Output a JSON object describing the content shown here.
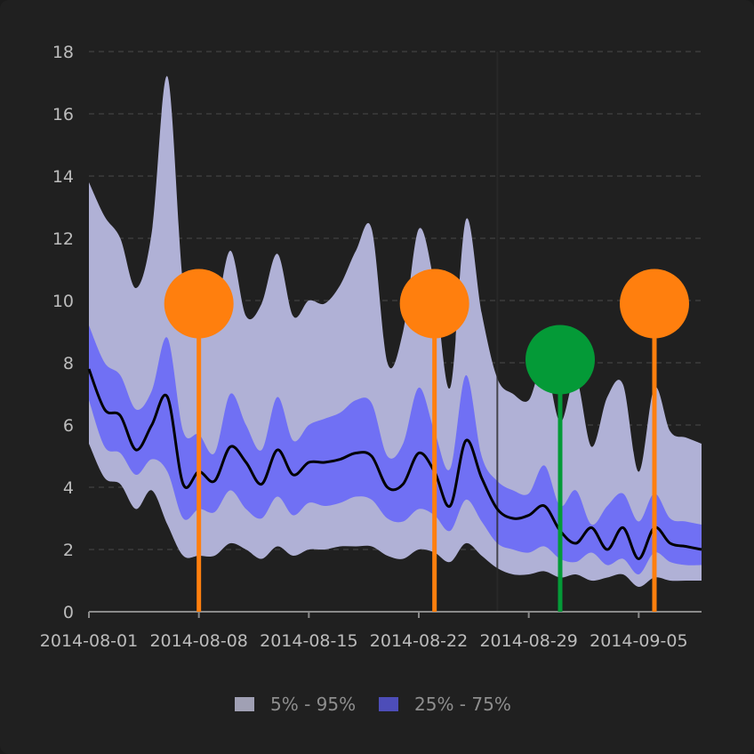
{
  "chart_data": {
    "type": "area",
    "x_start": "2014-08-01",
    "x_end": "2014-09-09",
    "ylim": [
      0,
      18
    ],
    "yticks": [
      0,
      2,
      4,
      6,
      8,
      10,
      12,
      14,
      16,
      18
    ],
    "xticks": [
      "2014-08-01",
      "2014-08-08",
      "2014-08-15",
      "2014-08-22",
      "2014-08-29",
      "2014-09-05"
    ],
    "grid": true,
    "legend_position": "bottom",
    "colors": {
      "band_outer": "#b0b1d6",
      "band_inner": "#7070f4",
      "median": "#000000",
      "marker_orange": "#ff7f0e",
      "marker_green": "#049a37",
      "legend_outer_swatch": "#a0a0b4",
      "legend_inner_swatch": "#4d4db8"
    },
    "legend": [
      {
        "label": "5% - 95%",
        "swatch": "outer"
      },
      {
        "label": "25% - 75%",
        "swatch": "inner"
      }
    ],
    "dates": [
      "2014-08-01",
      "2014-08-02",
      "2014-08-03",
      "2014-08-04",
      "2014-08-05",
      "2014-08-06",
      "2014-08-07",
      "2014-08-08",
      "2014-08-09",
      "2014-08-10",
      "2014-08-11",
      "2014-08-12",
      "2014-08-13",
      "2014-08-14",
      "2014-08-15",
      "2014-08-16",
      "2014-08-17",
      "2014-08-18",
      "2014-08-19",
      "2014-08-20",
      "2014-08-21",
      "2014-08-22",
      "2014-08-23",
      "2014-08-24",
      "2014-08-25",
      "2014-08-26",
      "2014-08-27",
      "2014-08-28",
      "2014-08-29",
      "2014-08-30",
      "2014-08-31",
      "2014-09-01",
      "2014-09-02",
      "2014-09-03",
      "2014-09-04",
      "2014-09-05",
      "2014-09-06",
      "2014-09-07",
      "2014-09-08",
      "2014-09-09"
    ],
    "series": [
      {
        "role": "p95",
        "values": [
          13.8,
          12.7,
          12.0,
          10.4,
          12.2,
          17.2,
          10.5,
          9.0,
          9.4,
          11.6,
          9.5,
          9.9,
          11.5,
          9.5,
          10.0,
          9.9,
          10.5,
          11.6,
          12.3,
          8.0,
          9.0,
          12.3,
          10.5,
          7.2,
          12.6,
          9.6,
          7.5,
          7.0,
          6.8,
          8.0,
          6.1,
          7.5,
          5.3,
          6.9,
          7.3,
          4.5,
          7.2,
          5.8,
          5.6,
          5.4
        ]
      },
      {
        "role": "p75",
        "values": [
          9.2,
          8.0,
          7.6,
          6.5,
          7.1,
          8.8,
          5.8,
          5.7,
          5.1,
          7.0,
          6.0,
          5.2,
          6.9,
          5.5,
          6.0,
          6.2,
          6.4,
          6.8,
          6.7,
          5.0,
          5.4,
          7.2,
          5.8,
          4.6,
          7.6,
          5.0,
          4.2,
          3.9,
          3.8,
          4.7,
          3.4,
          3.9,
          2.8,
          3.4,
          3.8,
          2.9,
          3.8,
          3.0,
          2.9,
          2.8
        ]
      },
      {
        "role": "median",
        "values": [
          7.8,
          6.5,
          6.3,
          5.2,
          6.0,
          6.9,
          4.1,
          4.5,
          4.2,
          5.3,
          4.8,
          4.1,
          5.2,
          4.4,
          4.8,
          4.8,
          4.9,
          5.1,
          5.0,
          4.0,
          4.1,
          5.1,
          4.5,
          3.4,
          5.5,
          4.3,
          3.3,
          3.0,
          3.1,
          3.4,
          2.6,
          2.2,
          2.7,
          2.0,
          2.7,
          1.7,
          2.7,
          2.2,
          2.1,
          2.0
        ]
      },
      {
        "role": "p25",
        "values": [
          6.8,
          5.3,
          5.1,
          4.4,
          4.9,
          4.5,
          3.0,
          3.3,
          3.2,
          3.9,
          3.3,
          3.0,
          3.7,
          3.1,
          3.5,
          3.4,
          3.5,
          3.7,
          3.6,
          3.0,
          2.9,
          3.3,
          3.1,
          2.6,
          3.6,
          2.9,
          2.2,
          2.0,
          1.9,
          2.1,
          1.7,
          1.6,
          1.9,
          1.5,
          1.7,
          1.2,
          1.9,
          1.6,
          1.5,
          1.5
        ]
      },
      {
        "role": "p5",
        "values": [
          5.4,
          4.3,
          4.1,
          3.3,
          3.9,
          2.8,
          1.8,
          1.8,
          1.8,
          2.2,
          2.0,
          1.7,
          2.1,
          1.8,
          2.0,
          2.0,
          2.1,
          2.1,
          2.1,
          1.8,
          1.7,
          2.0,
          1.9,
          1.6,
          2.2,
          1.8,
          1.4,
          1.2,
          1.2,
          1.3,
          1.1,
          1.2,
          1.0,
          1.1,
          1.2,
          0.8,
          1.1,
          1.0,
          1.0,
          1.0
        ]
      }
    ],
    "events": [
      {
        "date": "2014-08-08",
        "y": 9.9,
        "color": "orange"
      },
      {
        "date": "2014-08-23",
        "y": 9.9,
        "color": "orange"
      },
      {
        "date": "2014-08-31",
        "y": 8.1,
        "color": "green"
      },
      {
        "date": "2014-09-06",
        "y": 9.9,
        "color": "orange"
      }
    ],
    "reference_line_date": "2014-08-27"
  }
}
